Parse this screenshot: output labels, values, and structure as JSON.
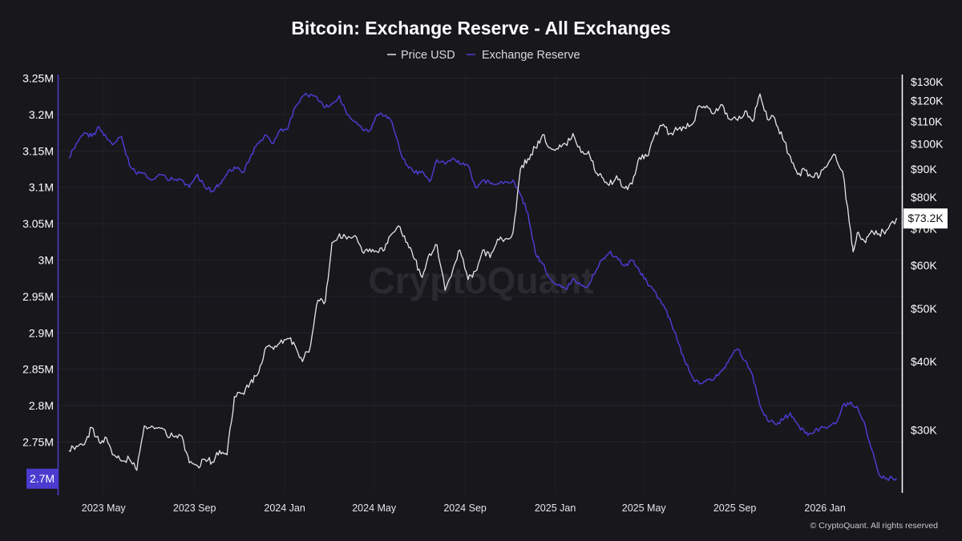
{
  "chart_data": {
    "type": "line",
    "title": "Bitcoin: Exchange Reserve - All Exchanges",
    "watermark": "CryptoQuant",
    "credit": "© CryptoQuant. All rights reserved",
    "legend": {
      "placement": "top-center",
      "items": [
        {
          "label": "Price USD",
          "color": "#e6e6ea"
        },
        {
          "label": "Exchange Reserve",
          "color": "#4b3ccf"
        }
      ]
    },
    "x_axis": {
      "type": "date",
      "range": [
        "2023-03-01",
        "2026-04-15"
      ],
      "ticks": [
        {
          "date": "2023-05-01",
          "label": "2023 May"
        },
        {
          "date": "2023-09-01",
          "label": "2023 Sep"
        },
        {
          "date": "2024-01-01",
          "label": "2024 Jan"
        },
        {
          "date": "2024-05-01",
          "label": "2024 May"
        },
        {
          "date": "2024-09-01",
          "label": "2024 Sep"
        },
        {
          "date": "2025-01-01",
          "label": "2025 Jan"
        },
        {
          "date": "2025-05-01",
          "label": "2025 May"
        },
        {
          "date": "2025-09-01",
          "label": "2025 Sep"
        },
        {
          "date": "2026-01-01",
          "label": "2026 Jan"
        }
      ]
    },
    "y_left": {
      "series": "Exchange Reserve",
      "range": [
        2.68,
        3.255
      ],
      "ticks": [
        {
          "value": 3.25,
          "label": "3.25M"
        },
        {
          "value": 3.2,
          "label": "3.2M"
        },
        {
          "value": 3.15,
          "label": "3.15M"
        },
        {
          "value": 3.1,
          "label": "3.1M"
        },
        {
          "value": 3.05,
          "label": "3.05M"
        },
        {
          "value": 3.0,
          "label": "3M"
        },
        {
          "value": 2.95,
          "label": "2.95M"
        },
        {
          "value": 2.9,
          "label": "2.9M"
        },
        {
          "value": 2.85,
          "label": "2.85M"
        },
        {
          "value": 2.8,
          "label": "2.8M"
        },
        {
          "value": 2.75,
          "label": "2.75M"
        }
      ],
      "current_label": "2.7M",
      "current_value": 2.7,
      "badge_color": "#4b3ccf"
    },
    "y_right": {
      "series": "Price USD",
      "scale": "log",
      "range": [
        23000,
        134000
      ],
      "ticks": [
        {
          "value": 130000,
          "label": "$130K"
        },
        {
          "value": 120000,
          "label": "$120K"
        },
        {
          "value": 110000,
          "label": "$110K"
        },
        {
          "value": 100000,
          "label": "$100K"
        },
        {
          "value": 90000,
          "label": "$90K"
        },
        {
          "value": 80000,
          "label": "$80K"
        },
        {
          "value": 70000,
          "label": "$70K"
        },
        {
          "value": 60000,
          "label": "$60K"
        },
        {
          "value": 50000,
          "label": "$50K"
        },
        {
          "value": 40000,
          "label": "$40K"
        },
        {
          "value": 30000,
          "label": "$30K"
        }
      ],
      "current_label": "$73.2K",
      "current_value": 73200,
      "badge_color": "#ffffff"
    },
    "series": [
      {
        "name": "Exchange Reserve",
        "color": "#4b3ccf",
        "axis": "left",
        "points": [
          [
            "2023-03-15",
            3.14
          ],
          [
            "2023-03-25",
            3.16
          ],
          [
            "2023-04-05",
            3.175
          ],
          [
            "2023-04-15",
            3.17
          ],
          [
            "2023-04-25",
            3.183
          ],
          [
            "2023-05-05",
            3.168
          ],
          [
            "2023-05-15",
            3.16
          ],
          [
            "2023-05-25",
            3.17
          ],
          [
            "2023-06-05",
            3.13
          ],
          [
            "2023-06-15",
            3.118
          ],
          [
            "2023-06-25",
            3.12
          ],
          [
            "2023-07-05",
            3.11
          ],
          [
            "2023-07-15",
            3.118
          ],
          [
            "2023-07-25",
            3.112
          ],
          [
            "2023-08-05",
            3.11
          ],
          [
            "2023-08-15",
            3.11
          ],
          [
            "2023-08-25",
            3.1
          ],
          [
            "2023-09-05",
            3.118
          ],
          [
            "2023-09-15",
            3.1
          ],
          [
            "2023-09-25",
            3.095
          ],
          [
            "2023-10-05",
            3.105
          ],
          [
            "2023-10-15",
            3.118
          ],
          [
            "2023-10-25",
            3.128
          ],
          [
            "2023-11-05",
            3.12
          ],
          [
            "2023-11-15",
            3.14
          ],
          [
            "2023-11-25",
            3.16
          ],
          [
            "2023-12-05",
            3.172
          ],
          [
            "2023-12-15",
            3.16
          ],
          [
            "2023-12-25",
            3.178
          ],
          [
            "2024-01-05",
            3.18
          ],
          [
            "2024-01-15",
            3.21
          ],
          [
            "2024-01-25",
            3.225
          ],
          [
            "2024-02-05",
            3.228
          ],
          [
            "2024-02-15",
            3.22
          ],
          [
            "2024-02-25",
            3.21
          ],
          [
            "2024-03-05",
            3.215
          ],
          [
            "2024-03-15",
            3.226
          ],
          [
            "2024-03-25",
            3.2
          ],
          [
            "2024-04-05",
            3.19
          ],
          [
            "2024-04-15",
            3.18
          ],
          [
            "2024-04-25",
            3.178
          ],
          [
            "2024-05-05",
            3.2
          ],
          [
            "2024-05-15",
            3.198
          ],
          [
            "2024-05-25",
            3.19
          ],
          [
            "2024-06-05",
            3.15
          ],
          [
            "2024-06-15",
            3.13
          ],
          [
            "2024-06-25",
            3.12
          ],
          [
            "2024-07-05",
            3.122
          ],
          [
            "2024-07-15",
            3.108
          ],
          [
            "2024-07-25",
            3.138
          ],
          [
            "2024-08-05",
            3.132
          ],
          [
            "2024-08-15",
            3.14
          ],
          [
            "2024-08-25",
            3.132
          ],
          [
            "2024-09-05",
            3.13
          ],
          [
            "2024-09-15",
            3.1
          ],
          [
            "2024-09-25",
            3.11
          ],
          [
            "2024-10-05",
            3.105
          ],
          [
            "2024-10-15",
            3.105
          ],
          [
            "2024-10-25",
            3.108
          ],
          [
            "2024-11-05",
            3.11
          ],
          [
            "2024-11-15",
            3.09
          ],
          [
            "2024-11-25",
            3.065
          ],
          [
            "2024-12-05",
            3.01
          ],
          [
            "2024-12-15",
            2.995
          ],
          [
            "2024-12-25",
            2.975
          ],
          [
            "2025-01-05",
            2.965
          ],
          [
            "2025-01-15",
            2.96
          ],
          [
            "2025-01-25",
            2.975
          ],
          [
            "2025-02-05",
            2.965
          ],
          [
            "2025-02-15",
            2.965
          ],
          [
            "2025-02-25",
            2.985
          ],
          [
            "2025-03-05",
            3.0
          ],
          [
            "2025-03-15",
            3.01
          ],
          [
            "2025-03-25",
            3.005
          ],
          [
            "2025-04-05",
            2.992
          ],
          [
            "2025-04-15",
            3.0
          ],
          [
            "2025-04-25",
            2.985
          ],
          [
            "2025-05-05",
            2.97
          ],
          [
            "2025-05-15",
            2.958
          ],
          [
            "2025-05-25",
            2.94
          ],
          [
            "2025-06-05",
            2.92
          ],
          [
            "2025-06-15",
            2.89
          ],
          [
            "2025-06-25",
            2.862
          ],
          [
            "2025-07-05",
            2.84
          ],
          [
            "2025-07-15",
            2.83
          ],
          [
            "2025-07-25",
            2.836
          ],
          [
            "2025-08-05",
            2.838
          ],
          [
            "2025-08-15",
            2.848
          ],
          [
            "2025-08-25",
            2.865
          ],
          [
            "2025-09-05",
            2.878
          ],
          [
            "2025-09-15",
            2.862
          ],
          [
            "2025-09-25",
            2.842
          ],
          [
            "2025-10-05",
            2.8
          ],
          [
            "2025-10-15",
            2.78
          ],
          [
            "2025-10-25",
            2.775
          ],
          [
            "2025-11-05",
            2.78
          ],
          [
            "2025-11-15",
            2.79
          ],
          [
            "2025-11-25",
            2.774
          ],
          [
            "2025-12-05",
            2.762
          ],
          [
            "2025-12-15",
            2.762
          ],
          [
            "2025-12-25",
            2.768
          ],
          [
            "2026-01-05",
            2.77
          ],
          [
            "2026-01-15",
            2.775
          ],
          [
            "2026-01-25",
            2.8
          ],
          [
            "2026-02-05",
            2.805
          ],
          [
            "2026-02-15",
            2.795
          ],
          [
            "2026-02-25",
            2.77
          ],
          [
            "2026-03-05",
            2.74
          ],
          [
            "2026-03-15",
            2.705
          ],
          [
            "2026-03-25",
            2.7
          ],
          [
            "2026-04-08",
            2.7
          ]
        ]
      },
      {
        "name": "Price USD",
        "color": "#e6e6ea",
        "axis": "right",
        "points": [
          [
            "2023-03-15",
            27500
          ],
          [
            "2023-03-25",
            28000
          ],
          [
            "2023-04-05",
            28200
          ],
          [
            "2023-04-15",
            30300
          ],
          [
            "2023-04-25",
            28500
          ],
          [
            "2023-05-05",
            29000
          ],
          [
            "2023-05-15",
            27000
          ],
          [
            "2023-05-25",
            26300
          ],
          [
            "2023-06-05",
            26500
          ],
          [
            "2023-06-15",
            25300
          ],
          [
            "2023-06-25",
            30500
          ],
          [
            "2023-07-05",
            30500
          ],
          [
            "2023-07-15",
            30300
          ],
          [
            "2023-07-25",
            29400
          ],
          [
            "2023-08-05",
            29100
          ],
          [
            "2023-08-15",
            29200
          ],
          [
            "2023-08-25",
            26100
          ],
          [
            "2023-09-05",
            25800
          ],
          [
            "2023-09-15",
            26500
          ],
          [
            "2023-09-25",
            26200
          ],
          [
            "2023-10-05",
            27500
          ],
          [
            "2023-10-15",
            27000
          ],
          [
            "2023-10-25",
            34500
          ],
          [
            "2023-11-05",
            35000
          ],
          [
            "2023-11-15",
            36500
          ],
          [
            "2023-11-25",
            37800
          ],
          [
            "2023-12-05",
            42000
          ],
          [
            "2023-12-15",
            42500
          ],
          [
            "2023-12-25",
            43200
          ],
          [
            "2024-01-05",
            44100
          ],
          [
            "2024-01-15",
            42800
          ],
          [
            "2024-01-25",
            40000
          ],
          [
            "2024-02-05",
            42800
          ],
          [
            "2024-02-15",
            51800
          ],
          [
            "2024-02-25",
            51500
          ],
          [
            "2024-03-05",
            66000
          ],
          [
            "2024-03-15",
            68500
          ],
          [
            "2024-03-25",
            67000
          ],
          [
            "2024-04-05",
            68000
          ],
          [
            "2024-04-15",
            63500
          ],
          [
            "2024-04-25",
            64300
          ],
          [
            "2024-05-05",
            63500
          ],
          [
            "2024-05-15",
            64000
          ],
          [
            "2024-05-25",
            68500
          ],
          [
            "2024-06-05",
            70500
          ],
          [
            "2024-06-15",
            66000
          ],
          [
            "2024-06-25",
            61500
          ],
          [
            "2024-07-05",
            57000
          ],
          [
            "2024-07-15",
            63000
          ],
          [
            "2024-07-25",
            65400
          ],
          [
            "2024-08-05",
            54000
          ],
          [
            "2024-08-15",
            58500
          ],
          [
            "2024-08-25",
            64000
          ],
          [
            "2024-09-05",
            56500
          ],
          [
            "2024-09-15",
            58500
          ],
          [
            "2024-09-25",
            64000
          ],
          [
            "2024-10-05",
            62000
          ],
          [
            "2024-10-15",
            67000
          ],
          [
            "2024-10-25",
            67000
          ],
          [
            "2024-11-05",
            69000
          ],
          [
            "2024-11-15",
            90000
          ],
          [
            "2024-11-25",
            94000
          ],
          [
            "2024-12-05",
            98500
          ],
          [
            "2024-12-15",
            104000
          ],
          [
            "2024-12-25",
            98500
          ],
          [
            "2025-01-05",
            98000
          ],
          [
            "2025-01-15",
            100000
          ],
          [
            "2025-01-25",
            104500
          ],
          [
            "2025-02-05",
            96500
          ],
          [
            "2025-02-15",
            97000
          ],
          [
            "2025-02-25",
            88500
          ],
          [
            "2025-03-05",
            87000
          ],
          [
            "2025-03-15",
            84000
          ],
          [
            "2025-03-25",
            87500
          ],
          [
            "2025-04-05",
            83000
          ],
          [
            "2025-04-15",
            84500
          ],
          [
            "2025-04-25",
            94500
          ],
          [
            "2025-05-05",
            95000
          ],
          [
            "2025-05-15",
            103500
          ],
          [
            "2025-05-25",
            108000
          ],
          [
            "2025-06-05",
            104500
          ],
          [
            "2025-06-15",
            106000
          ],
          [
            "2025-06-25",
            107000
          ],
          [
            "2025-07-05",
            108500
          ],
          [
            "2025-07-15",
            117500
          ],
          [
            "2025-07-25",
            117500
          ],
          [
            "2025-08-05",
            114000
          ],
          [
            "2025-08-15",
            118000
          ],
          [
            "2025-08-25",
            111000
          ],
          [
            "2025-09-05",
            110500
          ],
          [
            "2025-09-15",
            115000
          ],
          [
            "2025-09-25",
            110000
          ],
          [
            "2025-10-05",
            123500
          ],
          [
            "2025-10-15",
            111000
          ],
          [
            "2025-10-25",
            111500
          ],
          [
            "2025-11-05",
            102000
          ],
          [
            "2025-11-15",
            95000
          ],
          [
            "2025-11-25",
            88000
          ],
          [
            "2025-12-05",
            89500
          ],
          [
            "2025-12-15",
            87000
          ],
          [
            "2025-12-25",
            87500
          ],
          [
            "2026-01-05",
            92000
          ],
          [
            "2026-01-15",
            95500
          ],
          [
            "2026-01-25",
            89000
          ],
          [
            "2026-02-05",
            69000
          ],
          [
            "2026-02-08",
            63500
          ],
          [
            "2026-02-15",
            69000
          ],
          [
            "2026-02-25",
            66000
          ],
          [
            "2026-03-05",
            69500
          ],
          [
            "2026-03-15",
            68500
          ],
          [
            "2026-03-25",
            69500
          ],
          [
            "2026-04-08",
            73200
          ]
        ]
      }
    ]
  }
}
